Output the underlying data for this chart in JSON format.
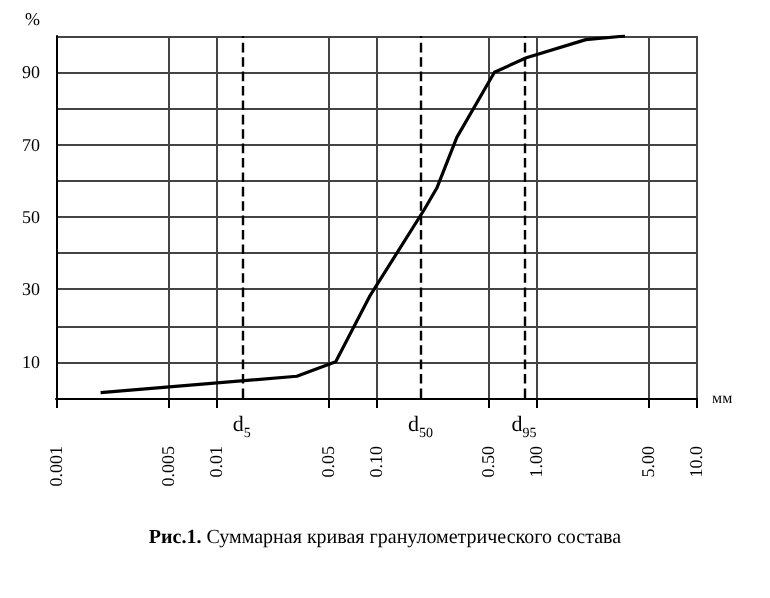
{
  "chart_data": {
    "type": "line",
    "title": "Рис.1. Суммарная кривая гранулометрического состава",
    "xlabel": "мм",
    "ylabel": "%",
    "log": "x",
    "x": [
      0.0019,
      0.032,
      0.056,
      0.091,
      0.2,
      0.24,
      0.32,
      0.55,
      0.87,
      2.05,
      3.6
    ],
    "series": [
      {
        "color": "#000000",
        "values": [
          1.5,
          6,
          10,
          28,
          52,
          58,
          72,
          90,
          94,
          99,
          100
        ]
      }
    ],
    "xlim": [
      0.001,
      10
    ],
    "ylim": [
      0,
      100
    ],
    "xticks": [
      {
        "value": 0.001,
        "label": "0.001"
      },
      {
        "value": 0.005,
        "label": "0.005"
      },
      {
        "value": 0.01,
        "label": "0.01"
      },
      {
        "value": 0.05,
        "label": "0.05"
      },
      {
        "value": 0.1,
        "label": "0.10"
      },
      {
        "value": 0.5,
        "label": "0.50"
      },
      {
        "value": 1,
        "label": "1.00"
      },
      {
        "value": 5,
        "label": "5.00"
      },
      {
        "value": 10,
        "label": "10.0"
      }
    ],
    "yticks": [
      {
        "value": 0,
        "label": null
      },
      10,
      {
        "value": 20,
        "label": null
      },
      30,
      {
        "value": 40,
        "label": null
      },
      50,
      {
        "value": 60,
        "label": null
      },
      70,
      {
        "value": 80,
        "label": null
      },
      90,
      {
        "value": 100,
        "label": null
      }
    ],
    "ref_lines": [
      {
        "axis": "x",
        "value": 0.0145,
        "label": "d$_{5}$",
        "line_style": "dashed"
      },
      {
        "axis": "x",
        "value": 0.19,
        "label": "d$_{50}$",
        "line_style": "dashed"
      },
      {
        "axis": "x",
        "value": 0.84,
        "label": "d$_{95}$",
        "line_style": "dashed"
      }
    ],
    "grid": true,
    "marker": "none",
    "line_style": "solid"
  }
}
